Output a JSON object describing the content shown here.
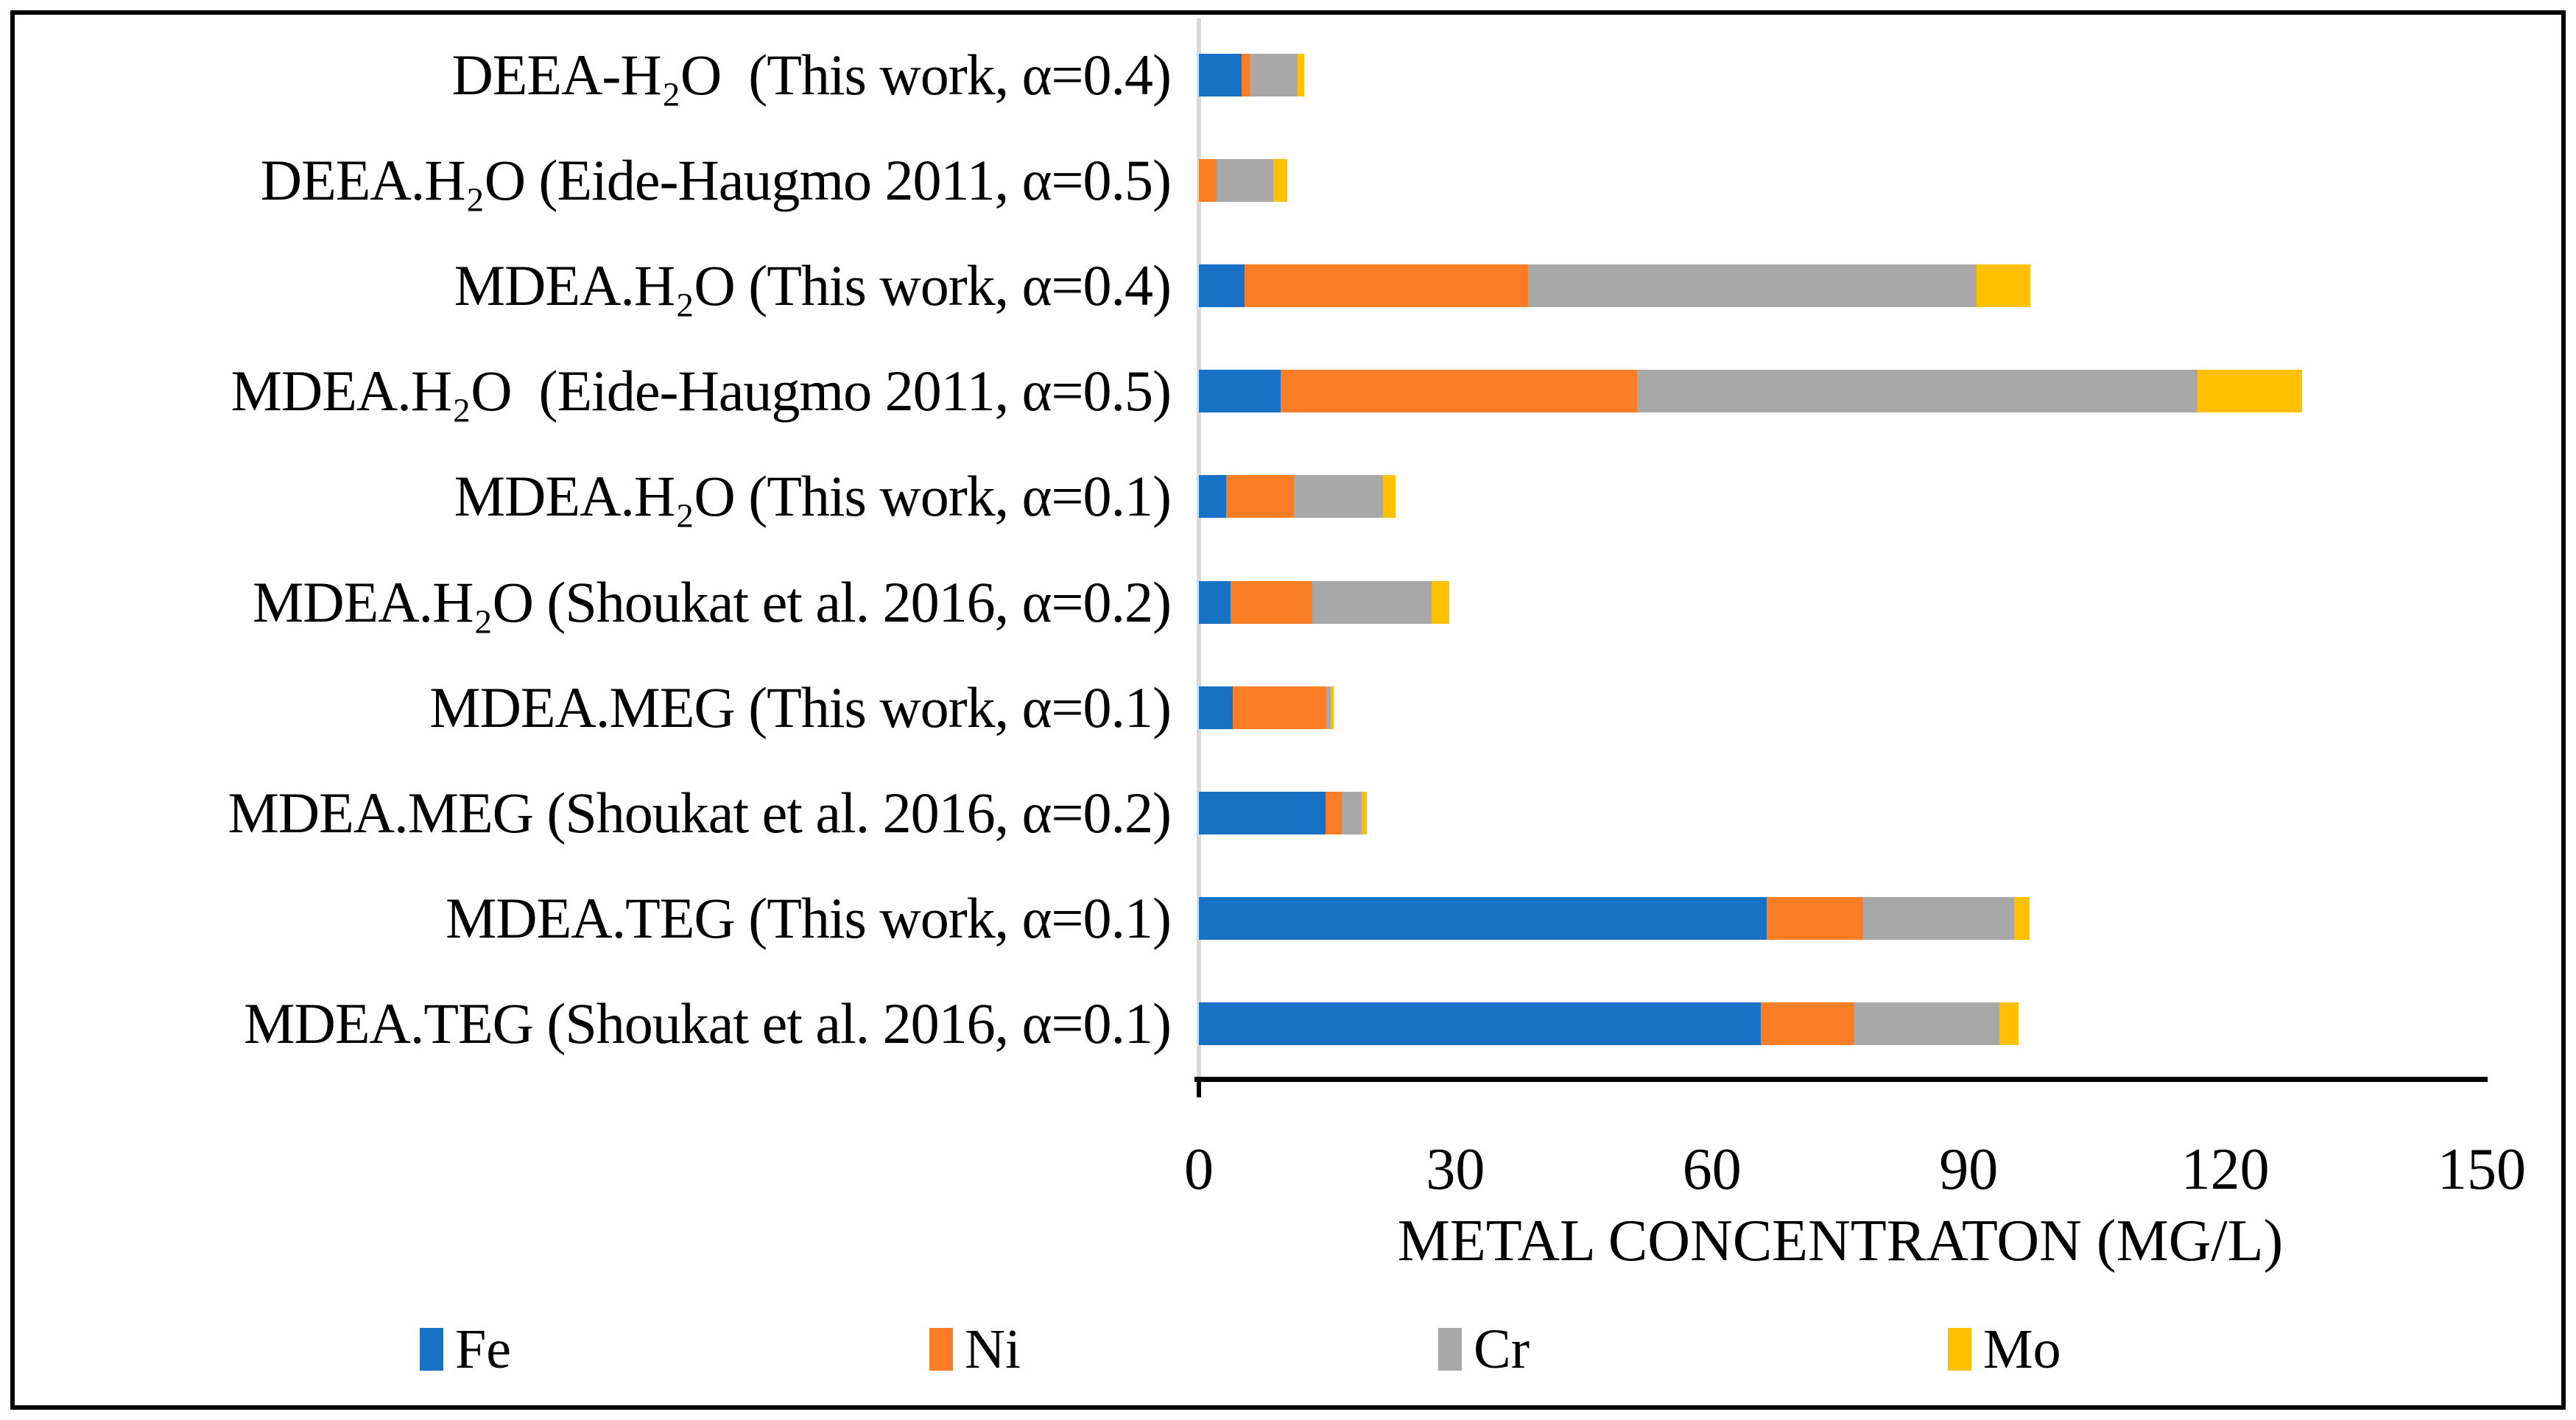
{
  "chart_data": {
    "type": "bar",
    "orientation": "horizontal",
    "stacked": true,
    "title": "",
    "xlabel": "METAL CONCENTRATON (MG/L)",
    "ylabel": "",
    "xlim": [
      0,
      150
    ],
    "x_ticks": [
      0,
      30,
      60,
      90,
      120,
      150
    ],
    "grid": false,
    "legend_position": "bottom",
    "axis_line_color": "#d9d9d9",
    "x_axis_line_color": "#000000",
    "categories": [
      "DEEA-H₂O  (This work, α=0.4)",
      "DEEA.H₂O (Eide-Haugmo 2011, α=0.5)",
      "MDEA.H₂O (This work, α=0.4)",
      "MDEA.H₂O  (Eide-Haugmo 2011, α=0.5)",
      "MDEA.H₂O (This work, α=0.1)",
      "MDEA.H₂O (Shoukat et al. 2016, α=0.2)",
      "MDEA.MEG (This work, α=0.1)",
      "MDEA.MEG (Shoukat et al. 2016, α=0.2)",
      "MDEA.TEG (This work, α=0.1)",
      "MDEA.TEG (Shoukat et al. 2016, α=0.1)"
    ],
    "series": [
      {
        "name": "Fe",
        "color": "#1772c6",
        "values": [
          5.0,
          0,
          5.3,
          9.6,
          3.2,
          3.7,
          4.0,
          14.8,
          66.4,
          65.7
        ]
      },
      {
        "name": "Ni",
        "color": "#fb7d25",
        "values": [
          0.9,
          2.1,
          33.2,
          41.6,
          7.9,
          9.6,
          10.9,
          1.9,
          11.3,
          10.9
        ]
      },
      {
        "name": "Cr",
        "color": "#a8a8a8",
        "values": [
          5.6,
          6.6,
          52.4,
          65.6,
          10.4,
          13.9,
          0.5,
          2.3,
          17.6,
          17.0
        ]
      },
      {
        "name": "Mo",
        "color": "#ffc000",
        "values": [
          0.8,
          1.6,
          6.3,
          12.2,
          1.5,
          2.1,
          0.4,
          0.6,
          1.8,
          2.2
        ]
      }
    ]
  }
}
